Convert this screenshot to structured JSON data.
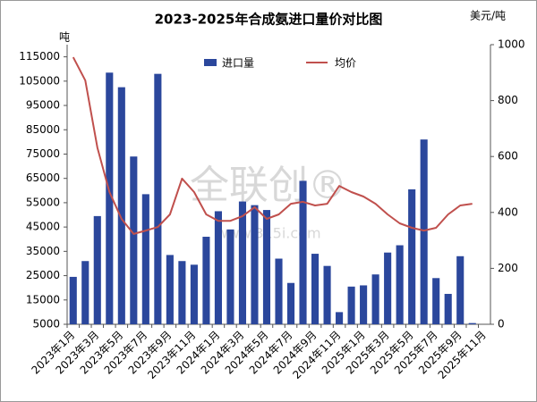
{
  "chart_data": {
    "type": "bar_line",
    "title": "2023-2025年合成氨进口量价对比图",
    "y_label": "吨",
    "y2_label": "美元/吨",
    "watermark": [
      "全联创®",
      "www.315i.com"
    ],
    "categories": [
      "2023年1月",
      null,
      "2023年3月",
      null,
      "2023年5月",
      null,
      "2023年7月",
      null,
      "2023年9月",
      null,
      "2023年11月",
      null,
      "2024年1月",
      null,
      "2024年3月",
      null,
      "2024年5月",
      null,
      "2024年7月",
      null,
      "2024年9月",
      null,
      "2024年11月",
      null,
      "2025年1月",
      null,
      "2025年3月",
      null,
      "2025年5月",
      null,
      "2025年7月",
      null,
      "2025年9月",
      null,
      "2025年11月"
    ],
    "series": [
      {
        "name": "进口量",
        "type": "bar",
        "color": "#2b479c",
        "values": [
          24500,
          31000,
          49500,
          108500,
          102500,
          74000,
          58500,
          108000,
          33500,
          31000,
          29500,
          41000,
          51500,
          44000,
          55500,
          54000,
          52000,
          32000,
          22000,
          64000,
          34000,
          29000,
          10000,
          20500,
          21000,
          25500,
          34500,
          37500,
          60500,
          81000,
          24000,
          17500,
          33000,
          5500,
          null
        ]
      },
      {
        "name": "均价",
        "type": "line",
        "axis": "y2",
        "color": "#c0504d",
        "values": [
          955,
          872,
          632,
          473,
          377,
          323,
          335,
          348,
          393,
          521,
          473,
          393,
          370,
          370,
          387,
          419,
          377,
          393,
          431,
          438,
          425,
          431,
          495,
          473,
          457,
          431,
          393,
          361,
          345,
          335,
          345,
          393,
          425,
          431,
          null
        ]
      }
    ],
    "ylim": [
      5000,
      120000
    ],
    "yticks": [
      5000,
      15000,
      25000,
      35000,
      45000,
      55000,
      65000,
      75000,
      85000,
      95000,
      105000,
      115000
    ],
    "y2lim": [
      0,
      1000
    ],
    "y2ticks": [
      0,
      200,
      400,
      600,
      800,
      1000
    ],
    "legend": "top"
  }
}
